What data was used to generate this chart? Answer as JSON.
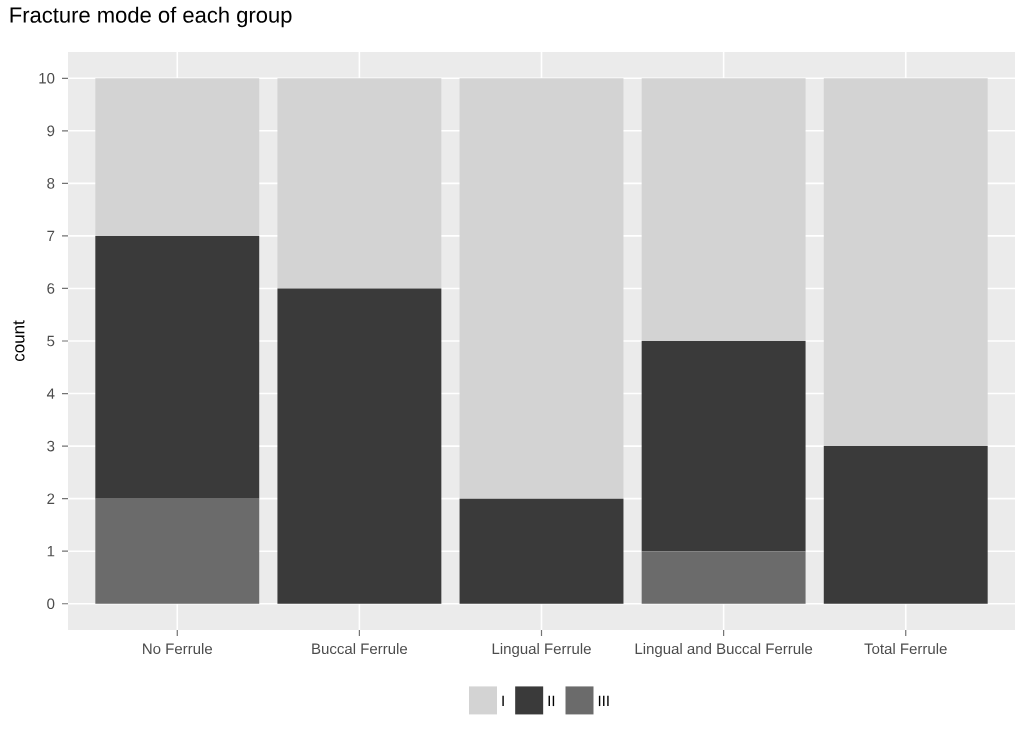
{
  "chart_data": {
    "type": "bar",
    "title": "Fracture mode of each group",
    "ylabel": "count",
    "categories": [
      "No Ferrule",
      "Buccal Ferrule",
      "Lingual Ferrule",
      "Lingual and Buccal Ferrule",
      "Total Ferrule"
    ],
    "stacked": true,
    "series": [
      {
        "name": "III",
        "color": "#6b6b6b",
        "values": [
          2,
          0,
          0,
          1,
          0
        ]
      },
      {
        "name": "II",
        "color": "#3a3a3a",
        "values": [
          5,
          6,
          2,
          4,
          3
        ]
      },
      {
        "name": "I",
        "color": "#d3d3d3",
        "values": [
          3,
          4,
          8,
          5,
          7
        ]
      }
    ],
    "ylim": [
      -0.5,
      10.5
    ],
    "yticks": [
      0,
      1,
      2,
      3,
      4,
      5,
      6,
      7,
      8,
      9,
      10
    ],
    "grid": true,
    "legend": "bottom"
  }
}
